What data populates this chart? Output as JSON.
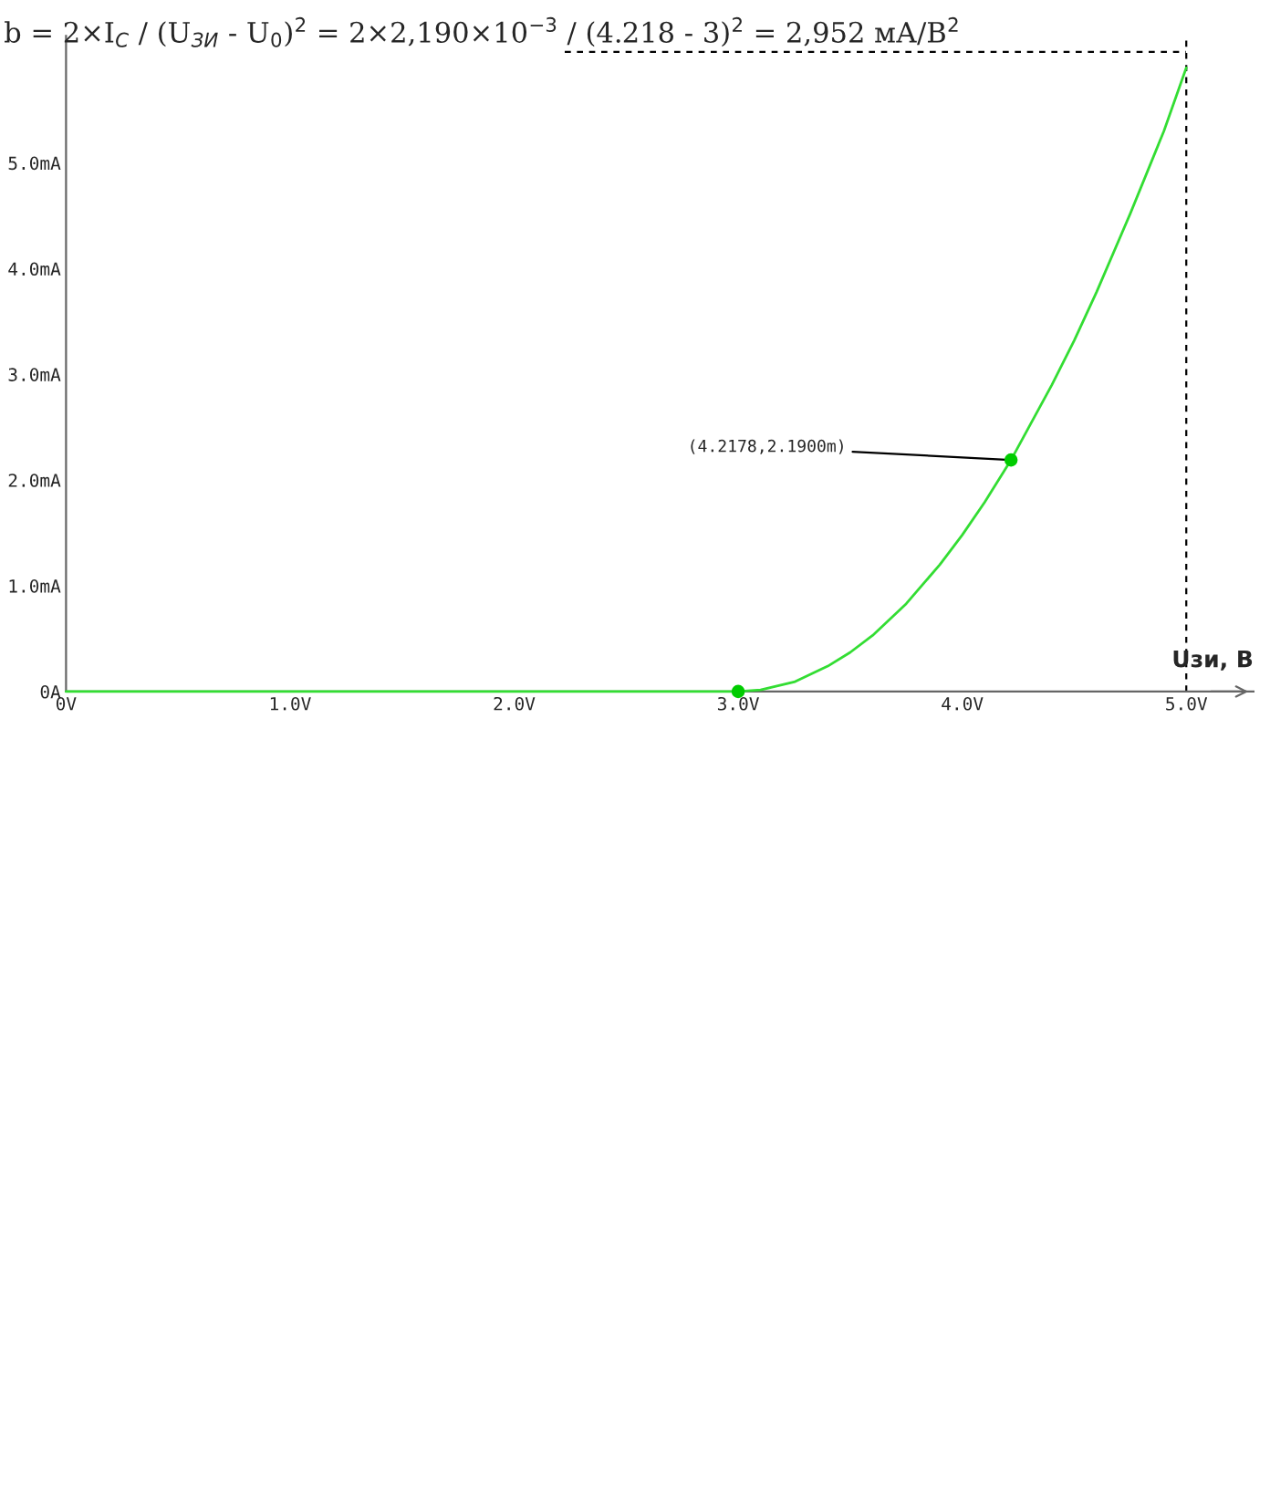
{
  "chart_data": {
    "type": "line",
    "title": "b = 2×I$_{C}$ / (U$_{ЗИ}$ - U$_{0}$)$^{2}$ = 2×2,190×10$^{−3}$ / (4.218 - 3)$^{2}$ = 2,952 мА/В$^{2}$",
    "xlabel": "Uзи, В",
    "series": [
      {
        "color": "#33dd33",
        "x": [
          0,
          1,
          2,
          3,
          3.1,
          3.25,
          3.4,
          3.5,
          3.6,
          3.75,
          3.9,
          4.0,
          4.1,
          4.2178,
          4.4,
          4.5,
          4.6,
          4.75,
          4.9,
          5.0
        ],
        "values": [
          0,
          0,
          0,
          0,
          0.015,
          0.09,
          0.24,
          0.37,
          0.53,
          0.83,
          1.2,
          1.48,
          1.79,
          2.19,
          2.9,
          3.32,
          3.78,
          4.52,
          5.3,
          5.9
        ]
      },
      {
        "type": "scatter",
        "color": "#00cc00",
        "x": [
          3.0,
          4.2178
        ],
        "values": [
          0,
          2.19
        ]
      }
    ],
    "annotations": [
      {
        "text": "(4.2178,2.1900m)",
        "x": 4.2178,
        "y": 2.19
      }
    ],
    "ref_lines": [
      {
        "axis": "x",
        "value": 5,
        "color": "#000000",
        "line_style": "dashed"
      },
      {
        "axis": "y",
        "value": 6.05,
        "color": "#000000",
        "line_style": "dashed"
      }
    ],
    "xlim": [
      0,
      5.3
    ],
    "ylim": [
      0,
      6.2
    ],
    "xticks": [
      {
        "value": 0,
        "label": "0V"
      },
      {
        "value": 1,
        "label": "1.0V"
      },
      {
        "value": 2,
        "label": "2.0V"
      },
      {
        "value": 3,
        "label": "3.0V"
      },
      {
        "value": 4,
        "label": "4.0V"
      },
      {
        "value": 5,
        "label": "5.0V"
      }
    ],
    "yticks": [
      {
        "value": 0,
        "label": "0A"
      },
      {
        "value": 1,
        "label": "1.0mA"
      },
      {
        "value": 2,
        "label": "2.0mA"
      },
      {
        "value": 3,
        "label": "3.0mA"
      },
      {
        "value": 4,
        "label": "4.0mA"
      },
      {
        "value": 5,
        "label": "5.0mA"
      }
    ],
    "grid": false
  }
}
